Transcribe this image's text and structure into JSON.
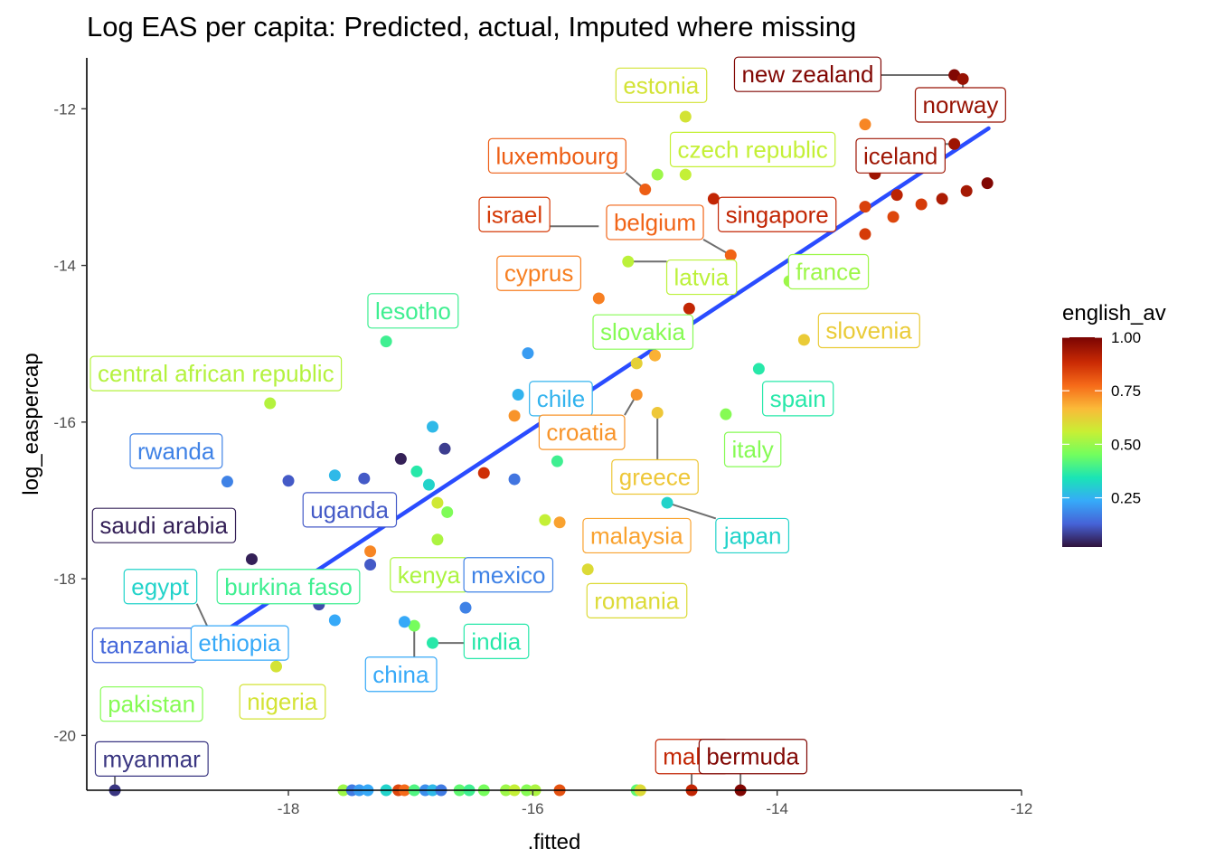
{
  "chart_data": {
    "type": "scatter",
    "title": "Log EAS per capita: Predicted, actual, Imputed where missing",
    "xlabel": ".fitted",
    "ylabel": "log_easpercap",
    "xlim": [
      -19.65,
      -12.0
    ],
    "ylim": [
      -20.7,
      -11.35
    ],
    "x_ticks": [
      -18,
      -16,
      -14,
      -12
    ],
    "y_ticks": [
      -20,
      -18,
      -16,
      -14,
      -12
    ],
    "x_tick_labels": [
      "-18",
      "-16",
      "-14",
      "-12"
    ],
    "y_tick_labels": [
      "-20",
      "-18",
      "-16",
      "-14",
      "-12"
    ],
    "grid": false,
    "legend": {
      "title": "english_av",
      "position": "right",
      "range": [
        0.02,
        1.0
      ],
      "ticks": [
        0.25,
        0.5,
        0.75,
        1.0
      ],
      "tick_labels": [
        "0.25",
        "0.50",
        "0.75",
        "1.00"
      ],
      "palette": [
        "#30123b",
        "#4662d7",
        "#36aaf9",
        "#1ae4b6",
        "#72fe5e",
        "#c8ef34",
        "#faba39",
        "#f66b19",
        "#ca2a04",
        "#7a0403"
      ]
    },
    "fit_line": {
      "x": [
        -18.58,
        -12.27
      ],
      "y": [
        -18.73,
        -12.25
      ],
      "color": "#2a4cff"
    },
    "points": [
      {
        "x": -12.55,
        "y": -11.57,
        "c": 0.99
      },
      {
        "x": -12.48,
        "y": -11.62,
        "c": 0.96
      },
      {
        "x": -12.28,
        "y": -12.95,
        "c": 0.99
      },
      {
        "x": -12.45,
        "y": -13.05,
        "c": 0.94
      },
      {
        "x": -12.65,
        "y": -13.15,
        "c": 0.93
      },
      {
        "x": -12.82,
        "y": -13.22,
        "c": 0.86
      },
      {
        "x": -13.05,
        "y": -13.38,
        "c": 0.84
      },
      {
        "x": -13.28,
        "y": -13.25,
        "c": 0.85
      },
      {
        "x": -13.28,
        "y": -13.6,
        "c": 0.86
      },
      {
        "x": -13.02,
        "y": -13.1,
        "c": 0.91
      },
      {
        "x": -13.2,
        "y": -12.83,
        "c": 0.95
      },
      {
        "x": -12.55,
        "y": -12.45,
        "c": 0.95
      },
      {
        "x": -13.28,
        "y": -12.2,
        "c": 0.74
      },
      {
        "x": -14.52,
        "y": -13.15,
        "c": 0.9
      },
      {
        "x": -14.72,
        "y": -14.55,
        "c": 0.9
      },
      {
        "x": -14.38,
        "y": -13.87,
        "c": 0.79
      },
      {
        "x": -15.08,
        "y": -13.03,
        "c": 0.8
      },
      {
        "x": -14.75,
        "y": -12.1,
        "c": 0.58
      },
      {
        "x": -14.75,
        "y": -12.84,
        "c": 0.55
      },
      {
        "x": -14.98,
        "y": -12.84,
        "c": 0.5
      },
      {
        "x": -15.22,
        "y": -13.95,
        "c": 0.54
      },
      {
        "x": -15.46,
        "y": -14.42,
        "c": 0.75
      },
      {
        "x": -13.9,
        "y": -14.2,
        "c": 0.5
      },
      {
        "x": -13.78,
        "y": -14.95,
        "c": 0.63
      },
      {
        "x": -14.15,
        "y": -15.32,
        "c": 0.35
      },
      {
        "x": -14.42,
        "y": -15.9,
        "c": 0.47
      },
      {
        "x": -15.0,
        "y": -15.15,
        "c": 0.68
      },
      {
        "x": -15.15,
        "y": -15.25,
        "c": 0.62
      },
      {
        "x": -15.15,
        "y": -15.65,
        "c": 0.72
      },
      {
        "x": -14.98,
        "y": -15.88,
        "c": 0.64
      },
      {
        "x": -16.04,
        "y": -15.12,
        "c": 0.2
      },
      {
        "x": -16.12,
        "y": -15.65,
        "c": 0.24
      },
      {
        "x": -16.15,
        "y": -15.92,
        "c": 0.72
      },
      {
        "x": -17.2,
        "y": -14.97,
        "c": 0.38
      },
      {
        "x": -18.15,
        "y": -15.76,
        "c": 0.53
      },
      {
        "x": -16.4,
        "y": -16.65,
        "c": 0.88
      },
      {
        "x": -16.15,
        "y": -16.73,
        "c": 0.14
      },
      {
        "x": -15.8,
        "y": -16.5,
        "c": 0.38
      },
      {
        "x": -16.82,
        "y": -16.06,
        "c": 0.25
      },
      {
        "x": -16.72,
        "y": -16.34,
        "c": 0.06
      },
      {
        "x": -17.08,
        "y": -16.47,
        "c": 0.02
      },
      {
        "x": -16.95,
        "y": -16.63,
        "c": 0.35
      },
      {
        "x": -16.85,
        "y": -16.8,
        "c": 0.3
      },
      {
        "x": -17.38,
        "y": -16.72,
        "c": 0.1
      },
      {
        "x": -17.62,
        "y": -16.68,
        "c": 0.25
      },
      {
        "x": -18.0,
        "y": -16.75,
        "c": 0.1
      },
      {
        "x": -18.5,
        "y": -16.76,
        "c": 0.16
      },
      {
        "x": -16.78,
        "y": -17.03,
        "c": 0.57
      },
      {
        "x": -16.7,
        "y": -17.15,
        "c": 0.46
      },
      {
        "x": -15.9,
        "y": -17.25,
        "c": 0.55
      },
      {
        "x": -15.78,
        "y": -17.28,
        "c": 0.7
      },
      {
        "x": -14.9,
        "y": -17.03,
        "c": 0.3
      },
      {
        "x": -16.78,
        "y": -17.5,
        "c": 0.52
      },
      {
        "x": -17.33,
        "y": -17.65,
        "c": 0.74
      },
      {
        "x": -17.33,
        "y": -17.82,
        "c": 0.1
      },
      {
        "x": -18.3,
        "y": -17.75,
        "c": 0.02
      },
      {
        "x": -17.8,
        "y": -18.05,
        "c": 0.25
      },
      {
        "x": -17.75,
        "y": -18.33,
        "c": 0.08
      },
      {
        "x": -17.62,
        "y": -18.53,
        "c": 0.22
      },
      {
        "x": -16.97,
        "y": -18.6,
        "c": 0.45
      },
      {
        "x": -16.55,
        "y": -18.37,
        "c": 0.16
      },
      {
        "x": -17.05,
        "y": -18.55,
        "c": 0.22
      },
      {
        "x": -16.82,
        "y": -18.82,
        "c": 0.35
      },
      {
        "x": -15.55,
        "y": -17.88,
        "c": 0.6
      },
      {
        "x": -18.6,
        "y": -18.82,
        "c": 0.3
      },
      {
        "x": -18.6,
        "y": -18.95,
        "c": 0.12
      },
      {
        "x": -18.1,
        "y": -19.12,
        "c": 0.58
      },
      {
        "x": -19.42,
        "y": -20.7,
        "c": 0.05
      },
      {
        "x": -17.55,
        "y": -20.7,
        "c": 0.5
      },
      {
        "x": -17.48,
        "y": -20.7,
        "c": 0.15
      },
      {
        "x": -17.42,
        "y": -20.7,
        "c": 0.2
      },
      {
        "x": -17.35,
        "y": -20.7,
        "c": 0.22
      },
      {
        "x": -17.2,
        "y": -20.7,
        "c": 0.3
      },
      {
        "x": -17.1,
        "y": -20.7,
        "c": 0.84
      },
      {
        "x": -17.05,
        "y": -20.7,
        "c": 0.78
      },
      {
        "x": -16.97,
        "y": -20.7,
        "c": 0.4
      },
      {
        "x": -16.88,
        "y": -20.7,
        "c": 0.18
      },
      {
        "x": -16.82,
        "y": -20.7,
        "c": 0.25
      },
      {
        "x": -16.75,
        "y": -20.7,
        "c": 0.15
      },
      {
        "x": -16.6,
        "y": -20.7,
        "c": 0.42
      },
      {
        "x": -16.52,
        "y": -20.7,
        "c": 0.38
      },
      {
        "x": -16.4,
        "y": -20.7,
        "c": 0.45
      },
      {
        "x": -16.22,
        "y": -20.7,
        "c": 0.5
      },
      {
        "x": -16.15,
        "y": -20.7,
        "c": 0.55
      },
      {
        "x": -16.05,
        "y": -20.7,
        "c": 0.47
      },
      {
        "x": -15.98,
        "y": -20.7,
        "c": 0.52
      },
      {
        "x": -15.78,
        "y": -20.7,
        "c": 0.82
      },
      {
        "x": -15.15,
        "y": -20.7,
        "c": 0.42
      },
      {
        "x": -15.12,
        "y": -20.7,
        "c": 0.6
      },
      {
        "x": -14.7,
        "y": -20.7,
        "c": 0.9
      },
      {
        "x": -14.3,
        "y": -20.7,
        "c": 0.99
      }
    ],
    "labels": [
      {
        "text": "new zealand",
        "x": -13.75,
        "y": -11.56,
        "c": 0.99,
        "px": -12.55,
        "py": -11.57
      },
      {
        "text": "norway",
        "x": -12.5,
        "y": -11.95,
        "c": 0.96,
        "px": -12.48,
        "py": -11.62
      },
      {
        "text": "estonia",
        "x": -14.95,
        "y": -11.7,
        "c": 0.58
      },
      {
        "text": "iceland",
        "x": -12.99,
        "y": -12.6,
        "c": 0.95,
        "px": -12.55,
        "py": -12.45
      },
      {
        "text": "czech republic",
        "x": -14.2,
        "y": -12.52,
        "c": 0.55
      },
      {
        "text": "luxembourg",
        "x": -15.8,
        "y": -12.6,
        "c": 0.8,
        "px": -15.08,
        "py": -13.03
      },
      {
        "text": "israel",
        "x": -16.15,
        "y": -13.35,
        "c": 0.86,
        "px": -15.46,
        "py": -13.5
      },
      {
        "text": "belgium",
        "x": -15.0,
        "y": -13.45,
        "c": 0.79,
        "px": -14.38,
        "py": -13.87
      },
      {
        "text": "singapore",
        "x": -14.0,
        "y": -13.35,
        "c": 0.9,
        "px": -14.52,
        "py": -13.15
      },
      {
        "text": "cyprus",
        "x": -15.95,
        "y": -14.1,
        "c": 0.75
      },
      {
        "text": "latvia",
        "x": -14.62,
        "y": -14.15,
        "c": 0.54,
        "px": -15.22,
        "py": -13.95
      },
      {
        "text": "france",
        "x": -13.58,
        "y": -14.08,
        "c": 0.5
      },
      {
        "text": "lesotho",
        "x": -16.98,
        "y": -14.58,
        "c": 0.38
      },
      {
        "text": "slovakia",
        "x": -15.1,
        "y": -14.85,
        "c": 0.47
      },
      {
        "text": "slovenia",
        "x": -13.25,
        "y": -14.83,
        "c": 0.63
      },
      {
        "text": "central african republic",
        "x": -18.72,
        "y": -15.38,
        "c": 0.53
      },
      {
        "text": "chile",
        "x": -15.77,
        "y": -15.7,
        "c": 0.24
      },
      {
        "text": "spain",
        "x": -13.83,
        "y": -15.7,
        "c": 0.35
      },
      {
        "text": "croatia",
        "x": -15.6,
        "y": -16.13,
        "c": 0.72,
        "px": -15.15,
        "py": -15.65
      },
      {
        "text": "italy",
        "x": -14.2,
        "y": -16.35,
        "c": 0.47
      },
      {
        "text": "rwanda",
        "x": -18.92,
        "y": -16.37,
        "c": 0.16
      },
      {
        "text": "greece",
        "x": -15.0,
        "y": -16.7,
        "c": 0.64,
        "px": -14.98,
        "py": -15.88
      },
      {
        "text": "uganda",
        "x": -17.5,
        "y": -17.12,
        "c": 0.1
      },
      {
        "text": "saudi arabia",
        "x": -19.02,
        "y": -17.32,
        "c": 0.02
      },
      {
        "text": "malaysia",
        "x": -15.15,
        "y": -17.45,
        "c": 0.7
      },
      {
        "text": "japan",
        "x": -14.2,
        "y": -17.45,
        "c": 0.3,
        "px": -14.9,
        "py": -17.03
      },
      {
        "text": "kenya",
        "x": -16.85,
        "y": -17.95,
        "c": 0.52
      },
      {
        "text": "mexico",
        "x": -16.2,
        "y": -17.95,
        "c": 0.16
      },
      {
        "text": "egypt",
        "x": -19.05,
        "y": -18.1,
        "c": 0.3,
        "px": -18.6,
        "py": -18.82
      },
      {
        "text": "burkina faso",
        "x": -18.0,
        "y": -18.1,
        "c": 0.38
      },
      {
        "text": "romania",
        "x": -15.15,
        "y": -18.28,
        "c": 0.6
      },
      {
        "text": "tanzania",
        "x": -19.18,
        "y": -18.85,
        "c": 0.12,
        "px": -18.6,
        "py": -18.95
      },
      {
        "text": "ethiopia",
        "x": -18.4,
        "y": -18.82,
        "c": 0.22,
        "px": -18.6,
        "py": -18.82
      },
      {
        "text": "india",
        "x": -16.3,
        "y": -18.8,
        "c": 0.35,
        "px": -16.82,
        "py": -18.82
      },
      {
        "text": "china",
        "x": -17.08,
        "y": -19.22,
        "c": 0.22,
        "px": -16.97,
        "py": -18.6
      },
      {
        "text": "nigeria",
        "x": -18.05,
        "y": -19.57,
        "c": 0.58
      },
      {
        "text": "pakistan",
        "x": -19.12,
        "y": -19.6,
        "c": 0.47
      },
      {
        "text": "myanmar",
        "x": -19.12,
        "y": -20.3,
        "c": 0.05,
        "px": -19.42,
        "py": -20.7
      },
      {
        "text": "malta",
        "x": -14.7,
        "y": -20.27,
        "c": 0.9,
        "px": -14.7,
        "py": -20.7
      },
      {
        "text": "bermuda",
        "x": -14.2,
        "y": -20.27,
        "c": 0.99,
        "px": -14.3,
        "py": -20.7
      }
    ]
  }
}
